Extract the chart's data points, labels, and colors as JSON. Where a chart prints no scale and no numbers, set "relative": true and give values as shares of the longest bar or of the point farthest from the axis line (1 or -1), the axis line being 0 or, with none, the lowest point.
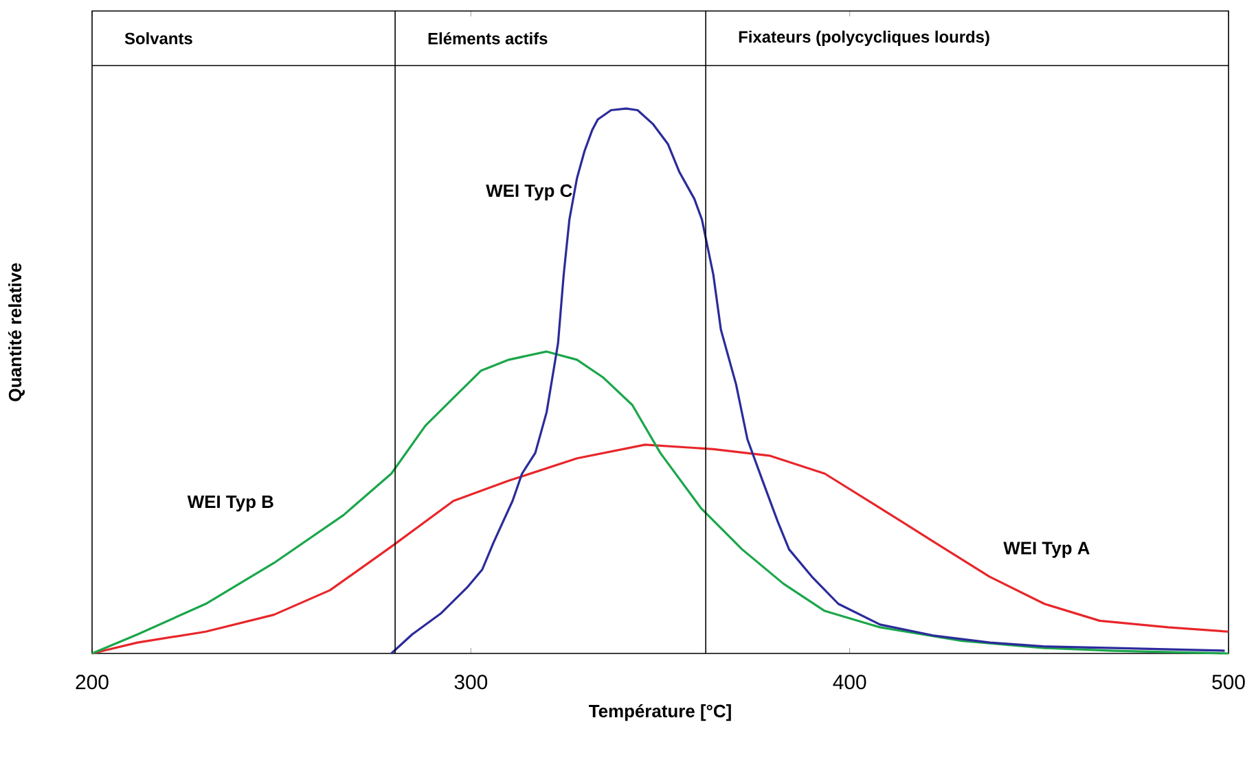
{
  "chart_data": {
    "type": "line",
    "relative": true,
    "xlabel": "Température [°C]",
    "ylabel": "Quantité relative",
    "xlim": [
      200,
      500
    ],
    "xticks": [
      200,
      300,
      400,
      500
    ],
    "ref_lines": [
      {
        "axis": "x",
        "value": 280
      },
      {
        "axis": "x",
        "value": 362
      }
    ],
    "annotations": [
      "Solvants",
      "Eléments actifs",
      "Fixateurs (polycycliques lourds)"
    ],
    "series": [
      {
        "name": "WEI Typ A",
        "color": "#e8262a",
        "x": [
          200,
          212,
          230,
          248,
          262.8,
          279,
          295.4,
          310,
          328,
          346,
          364,
          378.8,
          393.4,
          408,
          422.4,
          436.9,
          451.4,
          466,
          484,
          500
        ],
        "values": [
          0,
          0.02,
          0.04,
          0.071,
          0.116,
          0.196,
          0.28,
          0.317,
          0.358,
          0.383,
          0.375,
          0.363,
          0.33,
          0.267,
          0.204,
          0.141,
          0.091,
          0.06,
          0.048,
          0.04
        ]
      },
      {
        "name": "WEI Typ B",
        "color": "#1aa64a",
        "x": [
          200,
          212,
          230,
          248,
          266.4,
          279,
          288,
          295.4,
          302.7,
          310,
          320,
          328,
          335,
          342.6,
          350,
          360.7,
          371.6,
          382.5,
          393.4,
          408,
          429.6,
          451.4,
          469.5,
          500
        ],
        "values": [
          0,
          0.035,
          0.091,
          0.166,
          0.254,
          0.33,
          0.418,
          0.469,
          0.519,
          0.539,
          0.554,
          0.539,
          0.506,
          0.456,
          0.368,
          0.267,
          0.191,
          0.128,
          0.078,
          0.048,
          0.023,
          0.01,
          0.005,
          0
        ]
      },
      {
        "name": "WEI Typ C",
        "color": "#2b2b9b",
        "x": [
          279,
          284.5,
          292,
          299,
          303,
          306,
          311,
          313.5,
          317,
          320,
          323,
          324.5,
          326,
          328,
          330,
          332,
          333.5,
          337,
          341,
          344,
          348,
          352,
          355,
          359,
          361,
          364,
          366,
          370,
          373,
          377,
          381,
          384,
          390,
          397,
          408,
          422,
          437,
          451,
          470,
          499
        ],
        "values": [
          0,
          0.035,
          0.073,
          0.121,
          0.154,
          0.204,
          0.28,
          0.33,
          0.368,
          0.443,
          0.569,
          0.695,
          0.796,
          0.872,
          0.922,
          0.96,
          0.98,
          0.997,
          1,
          0.997,
          0.972,
          0.935,
          0.884,
          0.834,
          0.796,
          0.695,
          0.594,
          0.494,
          0.393,
          0.317,
          0.242,
          0.191,
          0.141,
          0.091,
          0.053,
          0.033,
          0.02,
          0.013,
          0.01,
          0.005
        ]
      }
    ]
  }
}
